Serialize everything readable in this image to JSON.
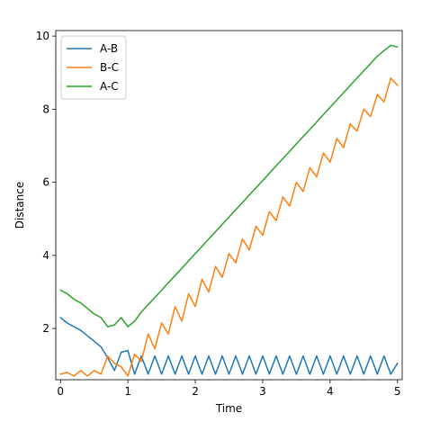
{
  "chart_data": {
    "type": "line",
    "title": "",
    "xlabel": "Time",
    "ylabel": "Distance",
    "xlim": [
      -0.07,
      5.07
    ],
    "ylim": [
      0.6,
      10.15
    ],
    "xticks": [
      0,
      1,
      2,
      3,
      4,
      5
    ],
    "yticks": [
      2,
      4,
      6,
      8,
      10
    ],
    "xtick_labels": [
      "0",
      "1",
      "2",
      "3",
      "4",
      "5"
    ],
    "ytick_labels": [
      "2",
      "4",
      "6",
      "8",
      "10"
    ],
    "grid": false,
    "legend_position": "top-left",
    "series": [
      {
        "name": "A-B",
        "color": "#1f77b4",
        "x": [
          0,
          0.1,
          0.2,
          0.3,
          0.4,
          0.5,
          0.6,
          0.7,
          0.8,
          0.9,
          1.0,
          1.1,
          1.2,
          1.3,
          1.4,
          1.5,
          1.6,
          1.7,
          1.8,
          1.9,
          2.0,
          2.1,
          2.2,
          2.3,
          2.4,
          2.5,
          2.6,
          2.7,
          2.8,
          2.9,
          3.0,
          3.1,
          3.2,
          3.3,
          3.4,
          3.5,
          3.6,
          3.7,
          3.8,
          3.9,
          4.0,
          4.1,
          4.2,
          4.3,
          4.4,
          4.5,
          4.6,
          4.7,
          4.8,
          4.9,
          5.0
        ],
        "y": [
          2.3,
          2.15,
          2.05,
          1.95,
          1.8,
          1.65,
          1.5,
          1.2,
          0.85,
          1.35,
          1.4,
          0.75,
          1.25,
          0.75,
          1.25,
          0.75,
          1.25,
          0.75,
          1.25,
          0.75,
          1.25,
          0.75,
          1.25,
          0.75,
          1.25,
          0.75,
          1.25,
          0.75,
          1.25,
          0.75,
          1.25,
          0.75,
          1.25,
          0.75,
          1.25,
          0.75,
          1.25,
          0.75,
          1.25,
          0.75,
          1.25,
          0.75,
          1.25,
          0.75,
          1.25,
          0.75,
          1.25,
          0.75,
          1.25,
          0.75,
          1.05
        ]
      },
      {
        "name": "B-C",
        "color": "#ff7f0e",
        "x": [
          0,
          0.1,
          0.2,
          0.3,
          0.4,
          0.5,
          0.6,
          0.7,
          0.8,
          0.9,
          1.0,
          1.1,
          1.2,
          1.3,
          1.4,
          1.5,
          1.6,
          1.7,
          1.8,
          1.9,
          2.0,
          2.1,
          2.2,
          2.3,
          2.4,
          2.5,
          2.6,
          2.7,
          2.8,
          2.9,
          3.0,
          3.1,
          3.2,
          3.3,
          3.4,
          3.5,
          3.6,
          3.7,
          3.8,
          3.9,
          4.0,
          4.1,
          4.2,
          4.3,
          4.4,
          4.5,
          4.6,
          4.7,
          4.8,
          4.9,
          5.0
        ],
        "y": [
          0.75,
          0.8,
          0.7,
          0.85,
          0.7,
          0.85,
          0.75,
          1.25,
          1.05,
          0.95,
          0.7,
          1.3,
          1.1,
          1.85,
          1.45,
          2.15,
          1.85,
          2.6,
          2.2,
          2.95,
          2.6,
          3.35,
          3.0,
          3.7,
          3.4,
          4.05,
          3.8,
          4.45,
          4.15,
          4.8,
          4.55,
          5.2,
          4.95,
          5.6,
          5.35,
          6.0,
          5.75,
          6.4,
          6.15,
          6.8,
          6.55,
          7.2,
          6.95,
          7.6,
          7.4,
          8.0,
          7.8,
          8.4,
          8.2,
          8.85,
          8.65
        ]
      },
      {
        "name": "A-C",
        "color": "#2ca02c",
        "x": [
          0,
          0.1,
          0.2,
          0.3,
          0.4,
          0.5,
          0.6,
          0.7,
          0.8,
          0.9,
          1.0,
          1.1,
          1.2,
          1.3,
          1.4,
          1.5,
          1.6,
          1.7,
          1.8,
          1.9,
          2.0,
          2.1,
          2.2,
          2.3,
          2.4,
          2.5,
          2.6,
          2.7,
          2.8,
          2.9,
          3.0,
          3.1,
          3.2,
          3.3,
          3.4,
          3.5,
          3.6,
          3.7,
          3.8,
          3.9,
          4.0,
          4.1,
          4.2,
          4.3,
          4.4,
          4.5,
          4.6,
          4.7,
          4.8,
          4.9,
          5.0
        ],
        "y": [
          3.05,
          2.95,
          2.8,
          2.7,
          2.55,
          2.4,
          2.3,
          2.05,
          2.1,
          2.3,
          2.05,
          2.2,
          2.45,
          2.65,
          2.85,
          3.05,
          3.25,
          3.45,
          3.65,
          3.85,
          4.05,
          4.25,
          4.45,
          4.65,
          4.85,
          5.05,
          5.25,
          5.45,
          5.65,
          5.85,
          6.05,
          6.25,
          6.45,
          6.65,
          6.85,
          7.05,
          7.25,
          7.45,
          7.65,
          7.85,
          8.05,
          8.25,
          8.45,
          8.65,
          8.85,
          9.05,
          9.25,
          9.45,
          9.6,
          9.75,
          9.7
        ]
      }
    ]
  }
}
